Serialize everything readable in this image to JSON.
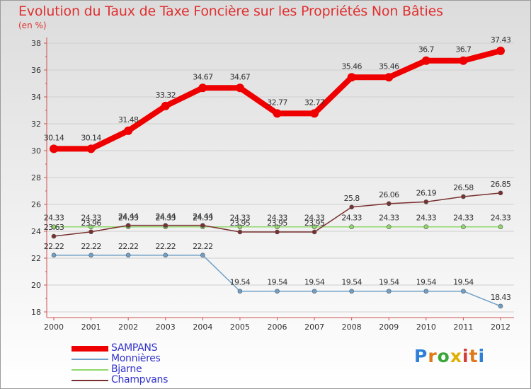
{
  "header": {
    "title": "Evolution du Taux de Taxe Foncière sur les Propriétés Non Bâties",
    "unit": "(en %)"
  },
  "logo": {
    "text": "Proxiti",
    "letter_colors": [
      "#2f7fd6",
      "#e07a18",
      "#3aa63a",
      "#e0b000",
      "#d23a3a",
      "#e07a18",
      "#2f7fd6"
    ]
  },
  "chart_data": {
    "type": "line",
    "title": "Evolution du Taux de Taxe Foncière sur les Propriétés Non Bâties",
    "ylabel": "(en %)",
    "xlabel": "",
    "x": [
      "2000",
      "2001",
      "2002",
      "2003",
      "2004",
      "2005",
      "2006",
      "2007",
      "2008",
      "2009",
      "2010",
      "2011",
      "2012"
    ],
    "ylim": [
      18,
      38
    ],
    "yticks": [
      "18",
      "20",
      "22",
      "24",
      "26",
      "28",
      "30",
      "32",
      "34",
      "36",
      "38"
    ],
    "grid": "horizontal",
    "legend_position": "bottom-left",
    "series": [
      {
        "name": "SAMPANS",
        "color": "#ee0000",
        "values": [
          30.14,
          30.14,
          31.48,
          33.32,
          34.67,
          34.67,
          32.77,
          32.77,
          35.46,
          35.46,
          36.7,
          36.7,
          37.43
        ],
        "labels": [
          "30.14",
          "30.14",
          "31.48",
          "33.32",
          "34.67",
          "34.67",
          "32.77",
          "32.77",
          "35.46",
          "35.46",
          "36.7",
          "36.7",
          "37.43"
        ]
      },
      {
        "name": "Monnières",
        "color": "#6fa0c8",
        "values": [
          22.22,
          22.22,
          22.22,
          22.22,
          22.22,
          19.54,
          19.54,
          19.54,
          19.54,
          19.54,
          19.54,
          19.54,
          18.43
        ],
        "labels": [
          "22.22",
          "22.22",
          "22.22",
          "22.22",
          "22.22",
          "19.54",
          "19.54",
          "19.54",
          "19.54",
          "19.54",
          "19.54",
          "19.54",
          "18.43"
        ]
      },
      {
        "name": "Bjarne",
        "color": "#8fd86a",
        "values": [
          24.33,
          24.33,
          24.33,
          24.33,
          24.33,
          24.33,
          24.33,
          24.33,
          24.33,
          24.33,
          24.33,
          24.33,
          24.33
        ],
        "labels": [
          "24.33",
          "24.33",
          "24.33",
          "24.33",
          "24.33",
          "24.33",
          "24.33",
          "24.33",
          "24.33",
          "24.33",
          "24.33",
          "24.33",
          "24.33"
        ]
      },
      {
        "name": "Champvans",
        "color": "#7a3030",
        "values": [
          23.63,
          23.96,
          24.44,
          24.44,
          24.44,
          23.95,
          23.95,
          23.95,
          25.8,
          26.06,
          26.19,
          26.58,
          26.85
        ],
        "labels": [
          "23.63",
          "23.96",
          "24.44",
          "24.44",
          "24.44",
          "23.95",
          "23.95",
          "23.95",
          "25.8",
          "26.06",
          "26.19",
          "26.58",
          "26.85"
        ]
      }
    ]
  }
}
